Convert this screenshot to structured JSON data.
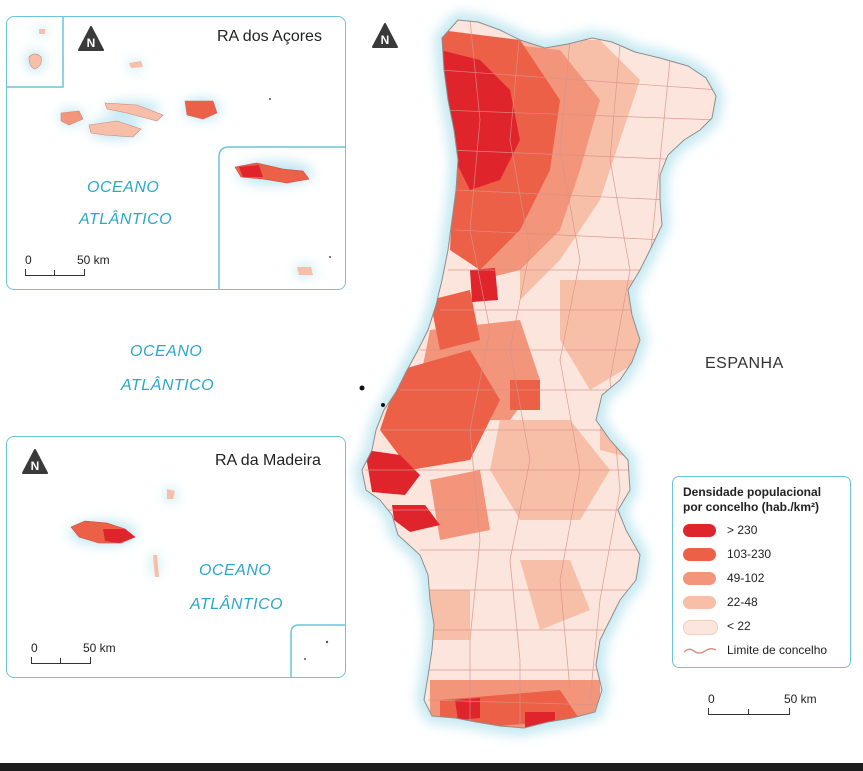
{
  "inset_azores": {
    "title": "RA dos Açores",
    "ocean_line1": "OCEANO",
    "ocean_line2": "ATLÂNTICO",
    "scale_zero": "0",
    "scale_label": "50 km"
  },
  "inset_madeira": {
    "title": "RA da Madeira",
    "ocean_line1": "OCEANO",
    "ocean_line2": "ATLÂNTICO",
    "scale_zero": "0",
    "scale_label": "50 km"
  },
  "main_map": {
    "ocean_line1": "OCEANO",
    "ocean_line2": "ATLÂNTICO",
    "country_label": "ESPANHA",
    "scale_zero": "0",
    "scale_label": "50 km"
  },
  "north_symbol": "N",
  "legend": {
    "title_line1": "Densidade populacional",
    "title_line2": "por concelho (hab./km²)",
    "items": [
      {
        "label": "> 230",
        "color": "#e0242c"
      },
      {
        "label": "103-230",
        "color": "#ec6048"
      },
      {
        "label": "49-102",
        "color": "#f2957a"
      },
      {
        "label": "22-48",
        "color": "#f7bfa8"
      },
      {
        "label": "< 22",
        "color": "#fce5dc"
      }
    ],
    "boundary_label": "Limite de concelho",
    "boundary_color": "#d9928a"
  },
  "colors": {
    "ocean_glow": "#bfe6f0",
    "frame": "#6cc4d8",
    "ocean_text": "#2aa7c9"
  }
}
